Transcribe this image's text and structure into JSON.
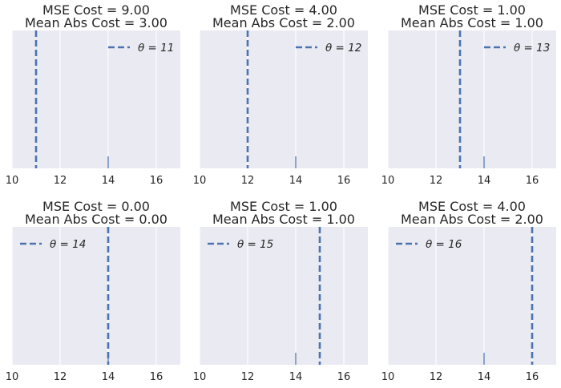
{
  "chart_data": [
    {
      "type": "rug-with-vline",
      "title_lines": [
        "MSE Cost = 9.00",
        "Mean Abs Cost = 3.00"
      ],
      "theta": 11,
      "legend": "θ = 11",
      "legend_position": "top-right",
      "data_points": [
        14
      ],
      "xlim": [
        10,
        17
      ],
      "xticks": [
        10,
        12,
        14,
        16
      ],
      "xtick_labels": [
        "10",
        "12",
        "14",
        "16"
      ],
      "grid": true
    },
    {
      "type": "rug-with-vline",
      "title_lines": [
        "MSE Cost = 4.00",
        "Mean Abs Cost = 2.00"
      ],
      "theta": 12,
      "legend": "θ = 12",
      "legend_position": "top-right",
      "data_points": [
        14
      ],
      "xlim": [
        10,
        17
      ],
      "xticks": [
        10,
        12,
        14,
        16
      ],
      "xtick_labels": [
        "10",
        "12",
        "14",
        "16"
      ],
      "grid": true
    },
    {
      "type": "rug-with-vline",
      "title_lines": [
        "MSE Cost = 1.00",
        "Mean Abs Cost = 1.00"
      ],
      "theta": 13,
      "legend": "θ = 13",
      "legend_position": "top-right",
      "data_points": [
        14
      ],
      "xlim": [
        10,
        17
      ],
      "xticks": [
        10,
        12,
        14,
        16
      ],
      "xtick_labels": [
        "10",
        "12",
        "14",
        "16"
      ],
      "grid": true
    },
    {
      "type": "rug-with-vline",
      "title_lines": [
        "MSE Cost = 0.00",
        "Mean Abs Cost = 0.00"
      ],
      "theta": 14,
      "legend": "θ = 14",
      "legend_position": "top-left",
      "data_points": [
        14
      ],
      "xlim": [
        10,
        17
      ],
      "xticks": [
        10,
        12,
        14,
        16
      ],
      "xtick_labels": [
        "10",
        "12",
        "14",
        "16"
      ],
      "grid": true
    },
    {
      "type": "rug-with-vline",
      "title_lines": [
        "MSE Cost = 1.00",
        "Mean Abs Cost = 1.00"
      ],
      "theta": 15,
      "legend": "θ = 15",
      "legend_position": "top-left",
      "data_points": [
        14
      ],
      "xlim": [
        10,
        17
      ],
      "xticks": [
        10,
        12,
        14,
        16
      ],
      "xtick_labels": [
        "10",
        "12",
        "14",
        "16"
      ],
      "grid": true
    },
    {
      "type": "rug-with-vline",
      "title_lines": [
        "MSE Cost = 4.00",
        "Mean Abs Cost = 2.00"
      ],
      "theta": 16,
      "legend": "θ = 16",
      "legend_position": "top-left",
      "data_points": [
        14
      ],
      "xlim": [
        10,
        17
      ],
      "xticks": [
        10,
        12,
        14,
        16
      ],
      "xtick_labels": [
        "10",
        "12",
        "14",
        "16"
      ],
      "grid": true
    }
  ],
  "colors": {
    "axes_bg": "#eaeaf2",
    "grid": "#ffffff",
    "line": "#4c72b0",
    "text": "#262626"
  }
}
